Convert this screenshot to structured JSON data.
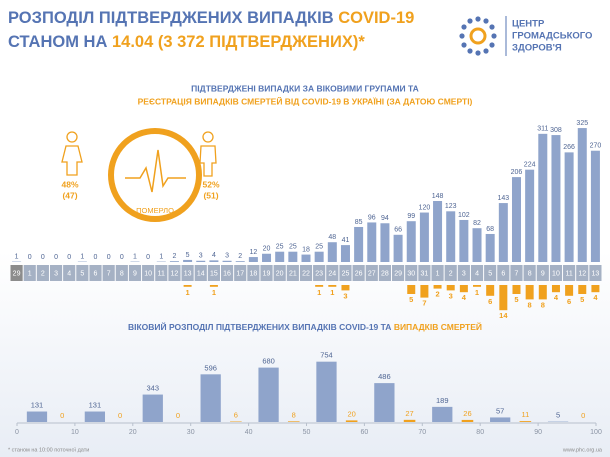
{
  "header": {
    "title_line1": "РОЗПОДІЛ ПІДТВЕРДЖЕНИХ ВИПАДКІВ ",
    "title_line1_highlight": "COVID-19",
    "title_line2": "СТАНОМ НА ",
    "title_line2_highlight": "14.04 (3 372 ПІДТВЕРДЖЕНИХ)*",
    "logo": [
      "ЦЕНТР",
      "ГРОМАДСЬКОГО",
      "ЗДОРОВ'Я"
    ]
  },
  "gender": {
    "female_percent": "48%",
    "female_count": "(47)",
    "male_percent": "52%",
    "male_count": "(51)",
    "center_label": "ПОМЕРЛО"
  },
  "chart_data": [
    {
      "type": "bar",
      "title_line1": "ПІДТВЕРДЖЕНІ ВИПАДКИ ЗА ВІКОВИМИ ГРУПАМИ ТА",
      "title_line2": "РЕЄСТРАЦІЯ ВИПАДКІВ СМЕРТЕЙ ВІД COVID-19 В УКРАЇНІ (ЗА ДАТОЮ СМЕРТІ)",
      "categories": [
        "29",
        "1",
        "2",
        "3",
        "4",
        "5",
        "6",
        "7",
        "8",
        "9",
        "10",
        "11",
        "12",
        "13",
        "14",
        "15",
        "16",
        "17",
        "18",
        "19",
        "20",
        "21",
        "22",
        "23",
        "24",
        "25",
        "26",
        "27",
        "28",
        "29",
        "30",
        "31",
        "1",
        "2",
        "3",
        "4",
        "5",
        "6",
        "7",
        "8",
        "9",
        "10",
        "11",
        "12",
        "13"
      ],
      "series": [
        {
          "color": "#8fa4cb",
          "values": [
            1,
            0,
            0,
            0,
            0,
            1,
            0,
            0,
            0,
            1,
            0,
            1,
            2,
            5,
            3,
            4,
            3,
            2,
            12,
            20,
            25,
            25,
            18,
            25,
            48,
            41,
            85,
            96,
            94,
            66,
            99,
            120,
            148,
            123,
            102,
            82,
            68,
            143,
            206,
            224,
            311,
            308,
            266,
            325,
            270
          ]
        },
        {
          "color": "#f0a11e",
          "axis": "y2",
          "values": [
            null,
            null,
            null,
            null,
            null,
            null,
            null,
            null,
            null,
            null,
            null,
            null,
            null,
            1,
            null,
            1,
            null,
            null,
            null,
            null,
            null,
            null,
            null,
            1,
            1,
            3,
            null,
            null,
            null,
            null,
            5,
            7,
            2,
            3,
            4,
            1,
            6,
            14,
            5,
            8,
            8,
            4,
            6,
            5,
            4
          ]
        }
      ],
      "ylim": [
        0,
        330
      ],
      "y2lim": [
        0,
        15
      ]
    },
    {
      "type": "histogram",
      "title_line1": "ВІКОВИЙ РОЗПОДІЛ ПІДТВЕРДЖЕНИХ ВИПАДКІВ COVID-19 ТА ",
      "title_line1_highlight": "ВИПАДКІВ СМЕРТЕЙ",
      "bins": [
        0,
        10,
        20,
        30,
        40,
        50,
        60,
        70,
        80,
        90,
        100
      ],
      "series": [
        {
          "color": "#8fa4cb",
          "values": [
            131,
            131,
            343,
            596,
            680,
            754,
            486,
            189,
            57,
            5
          ]
        },
        {
          "color": "#f0a11e",
          "values": [
            0,
            0,
            0,
            6,
            8,
            20,
            27,
            26,
            11,
            0
          ]
        }
      ],
      "xlim": [
        0,
        100
      ],
      "xticks": [
        0,
        10,
        20,
        30,
        40,
        50,
        60,
        70,
        80,
        90,
        100
      ],
      "ylim": [
        0,
        800
      ]
    }
  ],
  "footer": {
    "note": "* станом на 10:00 поточної дати",
    "url": "www.phc.org.ua"
  }
}
